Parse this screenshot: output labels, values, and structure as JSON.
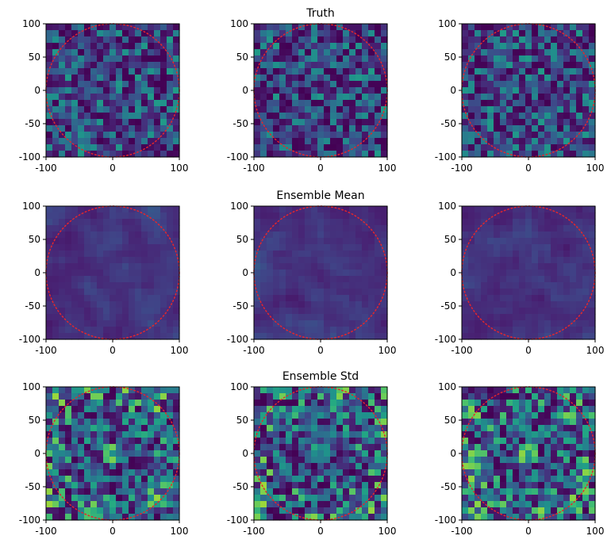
{
  "row_titles": [
    "Truth",
    "Ensemble Mean",
    "Ensemble Std"
  ],
  "colormap": "viridis",
  "circle_color": "#e4262c",
  "chart_data": [
    {
      "type": "heatmap",
      "row": 0,
      "col": 0,
      "title": "",
      "field": "Truth",
      "xlim": [
        -100,
        100
      ],
      "ylim": [
        -100,
        100
      ],
      "xticks": [
        -100,
        0,
        100
      ],
      "yticks": [
        100,
        50,
        0,
        -50,
        -100
      ],
      "grid_size": 21,
      "seed": 11,
      "base": 0.3,
      "spread": 0.55,
      "circle": {
        "center": [
          0,
          0
        ],
        "radius": 100,
        "style": "dotted"
      }
    },
    {
      "type": "heatmap",
      "row": 0,
      "col": 1,
      "title": "Truth",
      "field": "Truth",
      "xlim": [
        -100,
        100
      ],
      "ylim": [
        -100,
        100
      ],
      "xticks": [
        -100,
        0,
        100
      ],
      "yticks": [
        100,
        50,
        0,
        -50,
        -100
      ],
      "grid_size": 21,
      "seed": 23,
      "base": 0.3,
      "spread": 0.55,
      "circle": {
        "center": [
          0,
          0
        ],
        "radius": 100,
        "style": "dotted"
      }
    },
    {
      "type": "heatmap",
      "row": 0,
      "col": 2,
      "title": "",
      "field": "Truth",
      "xlim": [
        -100,
        100
      ],
      "ylim": [
        -100,
        100
      ],
      "xticks": [
        -100,
        0,
        100
      ],
      "yticks": [
        100,
        50,
        0,
        -50,
        -100
      ],
      "grid_size": 21,
      "seed": 37,
      "base": 0.3,
      "spread": 0.55,
      "circle": {
        "center": [
          0,
          0
        ],
        "radius": 100,
        "style": "dotted"
      }
    },
    {
      "type": "heatmap",
      "row": 1,
      "col": 0,
      "title": "",
      "field": "Ensemble Mean",
      "xlim": [
        -100,
        100
      ],
      "ylim": [
        -100,
        100
      ],
      "xticks": [
        -100,
        0,
        100
      ],
      "yticks": [
        100,
        50,
        0,
        -50,
        -100
      ],
      "grid_size": 21,
      "seed": 41,
      "base": 0.25,
      "spread": 0.3,
      "circle": {
        "center": [
          0,
          0
        ],
        "radius": 100,
        "style": "dotted"
      }
    },
    {
      "type": "heatmap",
      "row": 1,
      "col": 1,
      "title": "Ensemble Mean",
      "field": "Ensemble Mean",
      "xlim": [
        -100,
        100
      ],
      "ylim": [
        -100,
        100
      ],
      "xticks": [
        -100,
        0,
        100
      ],
      "yticks": [
        100,
        50,
        0,
        -50,
        -100
      ],
      "grid_size": 21,
      "seed": 53,
      "base": 0.25,
      "spread": 0.3,
      "circle": {
        "center": [
          0,
          0
        ],
        "radius": 100,
        "style": "dotted"
      }
    },
    {
      "type": "heatmap",
      "row": 1,
      "col": 2,
      "title": "",
      "field": "Ensemble Mean",
      "xlim": [
        -100,
        100
      ],
      "ylim": [
        -100,
        100
      ],
      "xticks": [
        -100,
        0,
        100
      ],
      "yticks": [
        100,
        50,
        0,
        -50,
        -100
      ],
      "grid_size": 21,
      "seed": 67,
      "base": 0.25,
      "spread": 0.3,
      "circle": {
        "center": [
          0,
          0
        ],
        "radius": 100,
        "style": "dotted"
      }
    },
    {
      "type": "heatmap",
      "row": 2,
      "col": 0,
      "title": "",
      "field": "Ensemble Std",
      "xlim": [
        -100,
        100
      ],
      "ylim": [
        -100,
        100
      ],
      "xticks": [
        -100,
        0,
        100
      ],
      "yticks": [
        100,
        50,
        0,
        -50,
        -100
      ],
      "grid_size": 21,
      "seed": 71,
      "base": 0.35,
      "spread": 0.75,
      "circle": {
        "center": [
          0,
          0
        ],
        "radius": 100,
        "style": "dotted"
      }
    },
    {
      "type": "heatmap",
      "row": 2,
      "col": 1,
      "title": "Ensemble Std",
      "field": "Ensemble Std",
      "xlim": [
        -100,
        100
      ],
      "ylim": [
        -100,
        100
      ],
      "xticks": [
        -100,
        0,
        100
      ],
      "yticks": [
        100,
        50,
        0,
        -50,
        -100
      ],
      "grid_size": 21,
      "seed": 83,
      "base": 0.35,
      "spread": 0.75,
      "circle": {
        "center": [
          0,
          0
        ],
        "radius": 100,
        "style": "dotted"
      }
    },
    {
      "type": "heatmap",
      "row": 2,
      "col": 2,
      "title": "",
      "field": "Ensemble Std",
      "xlim": [
        -100,
        100
      ],
      "ylim": [
        -100,
        100
      ],
      "xticks": [
        -100,
        0,
        100
      ],
      "yticks": [
        100,
        50,
        0,
        -50,
        -100
      ],
      "grid_size": 21,
      "seed": 97,
      "base": 0.35,
      "spread": 0.75,
      "circle": {
        "center": [
          0,
          0
        ],
        "radius": 100,
        "style": "dotted"
      }
    }
  ]
}
